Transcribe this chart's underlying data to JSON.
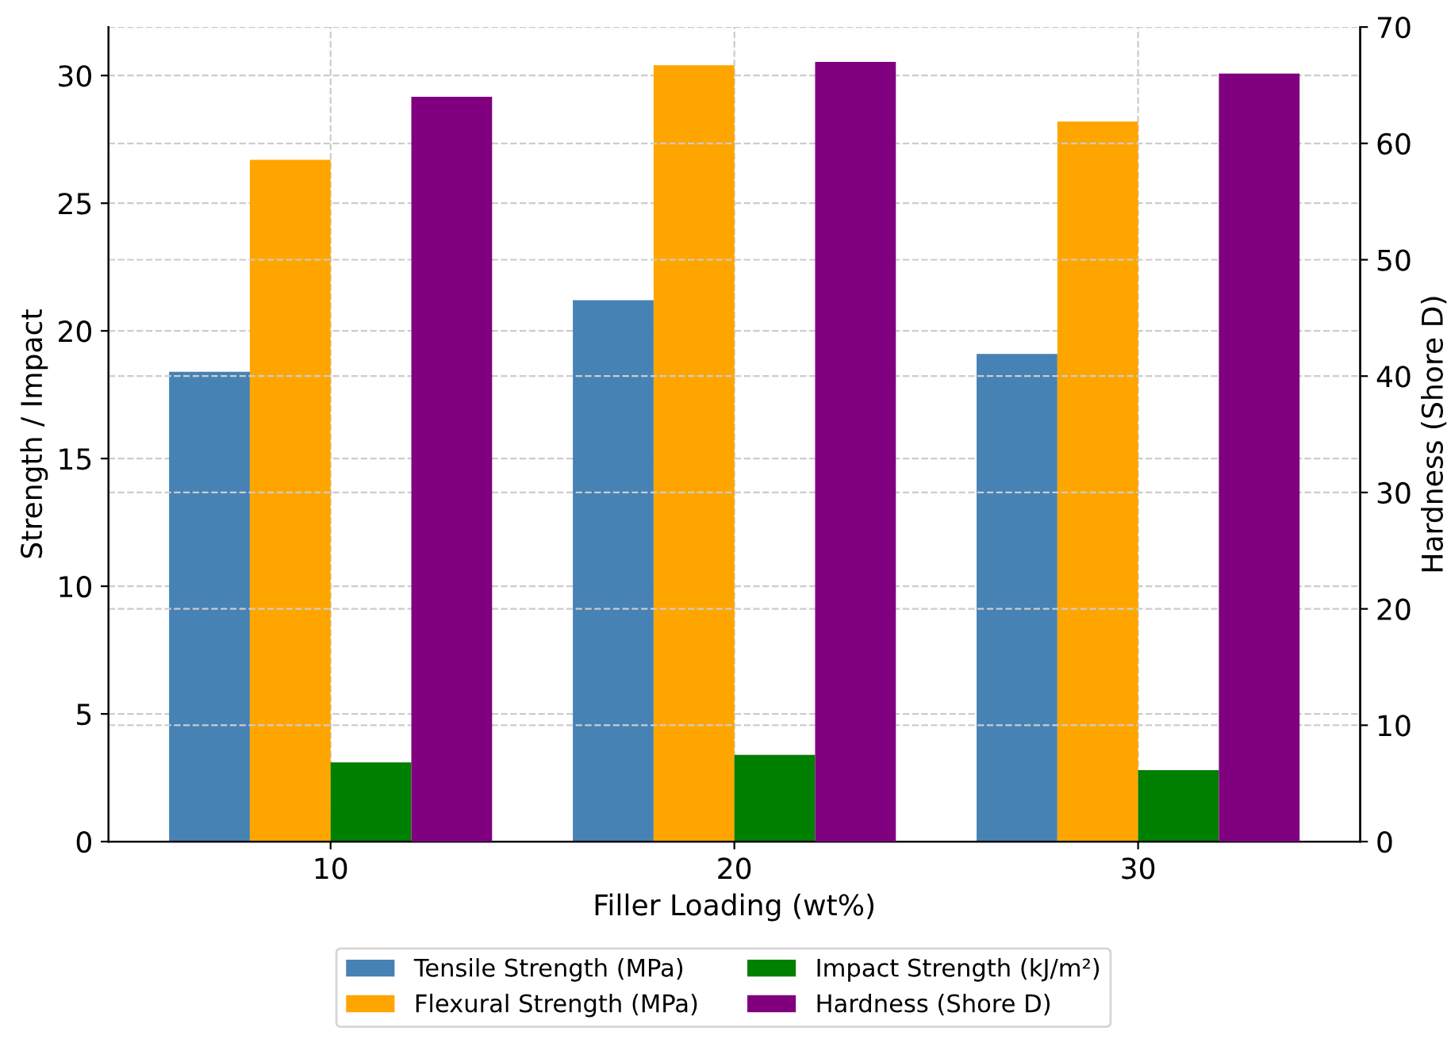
{
  "chart_data": {
    "type": "bar",
    "xlabel": "Filler Loading (wt%)",
    "ylabel": "Strength / Impact",
    "y2label": "Hardness (Shore D)",
    "categories": [
      "10",
      "20",
      "30"
    ],
    "series": [
      {
        "name": "Tensile Strength (MPa)",
        "color": "#4682b4",
        "values": [
          18.4,
          21.2,
          19.1
        ]
      },
      {
        "name": "Flexural Strength (MPa)",
        "color": "#ffa500",
        "values": [
          26.7,
          30.4,
          28.2
        ]
      },
      {
        "name": "Impact Strength (kJ/m²)",
        "color": "#008000",
        "values": [
          3.1,
          3.4,
          2.8
        ]
      },
      {
        "name": "Hardness (Shore D)",
        "color": "#800080",
        "values": [
          64,
          67,
          66
        ],
        "axis": "y2"
      }
    ],
    "ylim": [
      0,
      31.9
    ],
    "yticks": [
      0,
      5,
      10,
      15,
      20,
      25,
      30
    ],
    "y2lim": [
      0,
      70
    ],
    "y2ticks": [
      0,
      10,
      20,
      30,
      40,
      50,
      60,
      70
    ],
    "grid": true,
    "legend": "bottom"
  }
}
